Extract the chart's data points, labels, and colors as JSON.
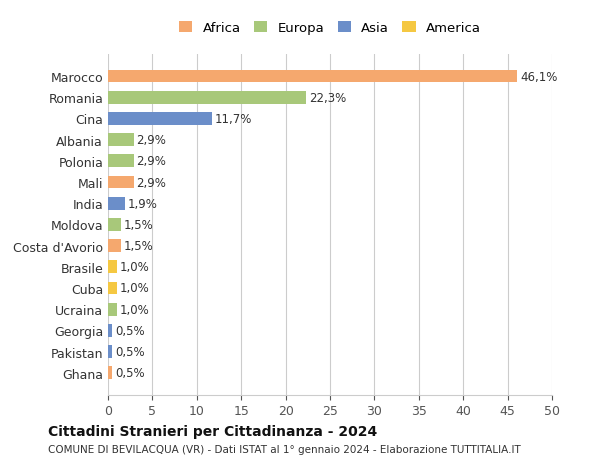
{
  "categories": [
    "Ghana",
    "Pakistan",
    "Georgia",
    "Ucraina",
    "Cuba",
    "Brasile",
    "Costa d'Avorio",
    "Moldova",
    "India",
    "Mali",
    "Polonia",
    "Albania",
    "Cina",
    "Romania",
    "Marocco"
  ],
  "values": [
    0.5,
    0.5,
    0.5,
    1.0,
    1.0,
    1.0,
    1.5,
    1.5,
    1.9,
    2.9,
    2.9,
    2.9,
    11.7,
    22.3,
    46.1
  ],
  "labels": [
    "0,5%",
    "0,5%",
    "0,5%",
    "1,0%",
    "1,0%",
    "1,0%",
    "1,5%",
    "1,5%",
    "1,9%",
    "2,9%",
    "2,9%",
    "2,9%",
    "11,7%",
    "22,3%",
    "46,1%"
  ],
  "colors": [
    "#f5a86e",
    "#6b8ec9",
    "#6b8ec9",
    "#a8c87a",
    "#f5c842",
    "#f5c842",
    "#f5a86e",
    "#a8c87a",
    "#6b8ec9",
    "#f5a86e",
    "#a8c87a",
    "#a8c87a",
    "#6b8ec9",
    "#a8c87a",
    "#f5a86e"
  ],
  "legend_labels": [
    "Africa",
    "Europa",
    "Asia",
    "America"
  ],
  "legend_colors": [
    "#f5a86e",
    "#a8c87a",
    "#6b8ec9",
    "#f5c842"
  ],
  "title": "Cittadini Stranieri per Cittadinanza - 2024",
  "subtitle": "COMUNE DI BEVILACQUA (VR) - Dati ISTAT al 1° gennaio 2024 - Elaborazione TUTTITALIA.IT",
  "xlim": [
    0,
    50
  ],
  "xticks": [
    0,
    5,
    10,
    15,
    20,
    25,
    30,
    35,
    40,
    45,
    50
  ],
  "background_color": "#ffffff",
  "grid_color": "#cccccc"
}
